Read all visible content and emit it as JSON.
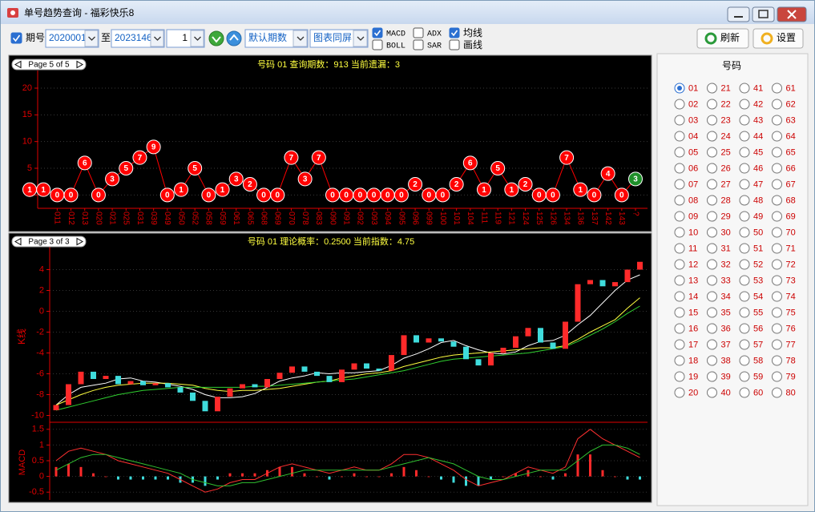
{
  "window": {
    "title": "单号趋势查询 - 福彩快乐8"
  },
  "toolbar": {
    "period_checkbox": {
      "label": "期号",
      "checked": true
    },
    "from": "2020001",
    "to_label": "至",
    "to": "2023146",
    "step": "1",
    "period_mode": "默认期数",
    "chart_mode": "图表同屏",
    "indicators": [
      {
        "label": "MACD",
        "checked": true
      },
      {
        "label": "BOLL",
        "checked": false
      },
      {
        "label": "ADX",
        "checked": false
      },
      {
        "label": "SAR",
        "checked": false
      },
      {
        "label": "均线",
        "checked": true
      },
      {
        "label": "画线",
        "checked": false
      }
    ],
    "refresh": "刷新",
    "settings": "设置"
  },
  "chart_data": [
    {
      "type": "line",
      "page": "Page 5 of 5",
      "title": "号码 01 查询期数：913 当前遗漏：3",
      "categories": [
        null,
        null,
        "011",
        "012",
        "013",
        "020",
        "021",
        "025",
        "031",
        "039",
        "049",
        "050",
        "052",
        "058",
        "059",
        "061",
        "065",
        "068",
        "069",
        "070",
        "078",
        "083",
        "090",
        "091",
        "092",
        "093",
        "094",
        "095",
        "096",
        "099",
        "100",
        "101",
        "104",
        "111",
        "119",
        "121",
        "124",
        "125",
        "126",
        "134",
        "136",
        "137",
        "142",
        "143",
        "?"
      ],
      "values": [
        1,
        1,
        0,
        0,
        6,
        0,
        3,
        5,
        7,
        9,
        0,
        1,
        5,
        0,
        1,
        3,
        2,
        0,
        0,
        7,
        3,
        7,
        0,
        0,
        0,
        0,
        0,
        0,
        2,
        0,
        0,
        2,
        6,
        1,
        5,
        1,
        2,
        0,
        0,
        7,
        1,
        0,
        4,
        0,
        3
      ],
      "color": "#ff0000",
      "last_color": "#1f8f2a",
      "ylim": [
        -2.5,
        23
      ],
      "yticks": [
        0,
        5,
        10,
        15,
        20
      ],
      "grid": true
    },
    {
      "type": "candlestick",
      "page": "Page 3 of 3",
      "title": "号码 01 理论概率：0.2500 当前指数：4.75",
      "ylabel": "K线",
      "open": [
        -9.5,
        -9,
        -7,
        -5.8,
        -6.5,
        -6.2,
        -7,
        -6.7,
        -7.1,
        -6.9,
        -7.3,
        -7.8,
        -8.6,
        -9.6,
        -8.2,
        -7.4,
        -7,
        -7.3,
        -6.5,
        -5.9,
        -5.3,
        -5.8,
        -6.2,
        -6.8,
        -5.6,
        -5,
        -5.5,
        -5.7,
        -4.2,
        -2.3,
        -3,
        -2.6,
        -2.9,
        -3.4,
        -4.6,
        -5.2,
        -4,
        -3.5,
        -2.4,
        -1.6,
        -3,
        -3.6,
        -1,
        2.6,
        3,
        2.4,
        2.8,
        4
      ],
      "close": [
        -9,
        -7,
        -5.8,
        -6.5,
        -6.2,
        -7,
        -6.7,
        -7.1,
        -6.9,
        -7.3,
        -7.8,
        -8.6,
        -9.6,
        -8.2,
        -7.4,
        -7,
        -7.3,
        -6.5,
        -5.9,
        -5.3,
        -5.8,
        -6.2,
        -6.8,
        -5.6,
        -5,
        -5.5,
        -5.7,
        -4.2,
        -2.3,
        -3,
        -2.6,
        -2.9,
        -3.4,
        -4.6,
        -5.2,
        -4,
        -3.5,
        -2.4,
        -1.6,
        -3,
        -3.6,
        -1,
        2.6,
        3,
        2.4,
        2.8,
        4,
        4.75
      ],
      "up_color": "#ff2a2a",
      "down_color": "#3fdcdc",
      "ma": [
        {
          "color": "#ffffff",
          "values": [
            -9,
            -8,
            -7.3,
            -7.1,
            -6.9,
            -6.5,
            -6.4,
            -6.7,
            -6.8,
            -7,
            -7.2,
            -7.5,
            -8,
            -8.3,
            -8.3,
            -8.2,
            -7.9,
            -7.3,
            -6.7,
            -6.4,
            -6.2,
            -5.9,
            -6,
            -5.9,
            -5.9,
            -5.8,
            -5.7,
            -5.2,
            -4.5,
            -4.1,
            -3.6,
            -3,
            -2.8,
            -3.3,
            -3.7,
            -4,
            -4.1,
            -3.9,
            -3.3,
            -2.9,
            -2.8,
            -2.3,
            -1.3,
            -0.4,
            0.8,
            2,
            3,
            3.5
          ]
        },
        {
          "color": "#ffff40",
          "values": [
            -9,
            -8.5,
            -8,
            -7.6,
            -7.3,
            -7.1,
            -7,
            -6.9,
            -6.9,
            -6.9,
            -7,
            -7.1,
            -7.4,
            -7.6,
            -7.7,
            -7.6,
            -7.6,
            -7.5,
            -7.4,
            -7.2,
            -7,
            -6.8,
            -6.7,
            -6.4,
            -6.2,
            -6,
            -5.9,
            -5.7,
            -5.3,
            -5,
            -4.7,
            -4.4,
            -4.2,
            -4.1,
            -4,
            -3.9,
            -3.8,
            -3.7,
            -3.6,
            -3.5,
            -3.5,
            -3.3,
            -2.7,
            -2,
            -1.4,
            -0.8,
            0.3,
            1.3
          ]
        },
        {
          "color": "#30d030",
          "values": [
            -9.5,
            -9.2,
            -8.9,
            -8.6,
            -8.3,
            -8,
            -7.8,
            -7.6,
            -7.5,
            -7.4,
            -7.3,
            -7.3,
            -7.3,
            -7.3,
            -7.3,
            -7.3,
            -7.2,
            -7.2,
            -7.1,
            -7,
            -6.9,
            -6.8,
            -6.7,
            -6.6,
            -6.5,
            -6.3,
            -6.1,
            -5.9,
            -5.7,
            -5.4,
            -5.1,
            -4.8,
            -4.6,
            -4.5,
            -4.4,
            -4.3,
            -4.2,
            -4.1,
            -4,
            -3.8,
            -3.6,
            -3.4,
            -2.9,
            -2.3,
            -1.7,
            -1,
            -0.2,
            0.5
          ]
        }
      ],
      "ylim": [
        -10.5,
        5.5
      ],
      "yticks": [
        -10,
        -8,
        -6,
        -4,
        -2,
        0,
        2,
        4
      ],
      "grid": true
    },
    {
      "type": "macd",
      "ylabel": "MACD",
      "dif": {
        "color": "#ff3030",
        "values": [
          0.5,
          0.8,
          0.9,
          0.8,
          0.7,
          0.5,
          0.4,
          0.3,
          0.2,
          0.1,
          -0.1,
          -0.3,
          -0.5,
          -0.4,
          -0.2,
          -0.1,
          -0.1,
          0.1,
          0.3,
          0.4,
          0.3,
          0.2,
          0.1,
          0.2,
          0.3,
          0.2,
          0.2,
          0.4,
          0.7,
          0.7,
          0.6,
          0.4,
          0.2,
          -0.1,
          -0.3,
          -0.2,
          -0.1,
          0.1,
          0.3,
          0.2,
          0.1,
          0.3,
          1.2,
          1.5,
          1.2,
          1,
          0.8,
          0.6
        ]
      },
      "dea": {
        "color": "#30c030",
        "values": [
          0.2,
          0.4,
          0.6,
          0.7,
          0.7,
          0.6,
          0.5,
          0.4,
          0.3,
          0.2,
          0.1,
          -0.1,
          -0.2,
          -0.3,
          -0.3,
          -0.2,
          -0.2,
          -0.1,
          0,
          0.1,
          0.2,
          0.2,
          0.2,
          0.2,
          0.2,
          0.2,
          0.2,
          0.3,
          0.4,
          0.5,
          0.6,
          0.5,
          0.4,
          0.2,
          0,
          -0.1,
          -0.1,
          0,
          0.1,
          0.2,
          0.2,
          0.2,
          0.5,
          0.8,
          1,
          1,
          0.9,
          0.7
        ]
      },
      "hist": [
        0.3,
        0.4,
        0.3,
        0.1,
        0,
        -0.1,
        -0.1,
        -0.1,
        -0.1,
        -0.1,
        -0.2,
        -0.2,
        -0.3,
        -0.1,
        0.1,
        0.1,
        0.1,
        0.2,
        0.3,
        0.3,
        0.1,
        0,
        -0.1,
        0,
        0.1,
        0,
        0,
        0.1,
        0.3,
        0.2,
        0,
        -0.1,
        -0.2,
        -0.3,
        -0.3,
        -0.1,
        0,
        0.1,
        0.2,
        0,
        -0.1,
        0.1,
        0.7,
        0.7,
        0.2,
        0,
        -0.1,
        -0.1
      ],
      "up_color": "#ff2a2a",
      "down_color": "#3fdcdc",
      "ylim": [
        -0.75,
        1.75
      ],
      "yticks": [
        -0.5,
        0,
        0.5,
        1,
        1.5
      ],
      "grid": true
    }
  ],
  "number_panel": {
    "title": "号码",
    "selected": 0,
    "numbers": [
      "01",
      "02",
      "03",
      "04",
      "05",
      "06",
      "07",
      "08",
      "09",
      "10",
      "11",
      "12",
      "13",
      "14",
      "15",
      "16",
      "17",
      "18",
      "19",
      "20",
      "21",
      "22",
      "23",
      "24",
      "25",
      "26",
      "27",
      "28",
      "29",
      "30",
      "31",
      "32",
      "33",
      "34",
      "35",
      "36",
      "37",
      "38",
      "39",
      "40",
      "41",
      "42",
      "43",
      "44",
      "45",
      "46",
      "47",
      "48",
      "49",
      "50",
      "51",
      "52",
      "53",
      "54",
      "55",
      "56",
      "57",
      "58",
      "59",
      "60",
      "61",
      "62",
      "63",
      "64",
      "65",
      "66",
      "67",
      "68",
      "69",
      "70",
      "71",
      "72",
      "73",
      "74",
      "75",
      "76",
      "77",
      "78",
      "79",
      "80"
    ]
  }
}
